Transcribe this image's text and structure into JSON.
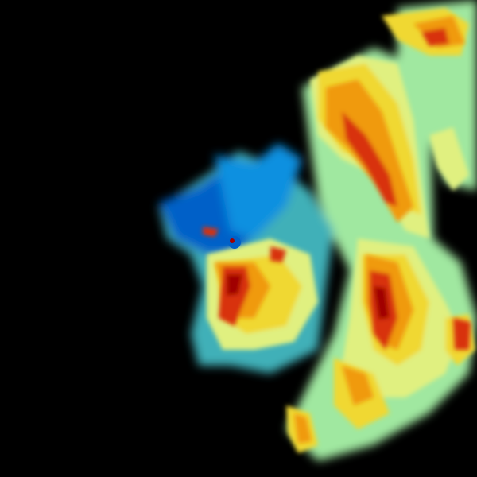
{
  "radar": {
    "product": "reflectivity",
    "background_color": "#000000",
    "palette": {
      "light_blue": "#1090e0",
      "blue": "#0060c8",
      "teal": "#40b0b8",
      "light_green": "#a0e8a0",
      "yellow_green": "#e0f080",
      "yellow": "#f0d830",
      "orange": "#f09a10",
      "red": "#d83010",
      "dark_red": "#a00000"
    }
  }
}
